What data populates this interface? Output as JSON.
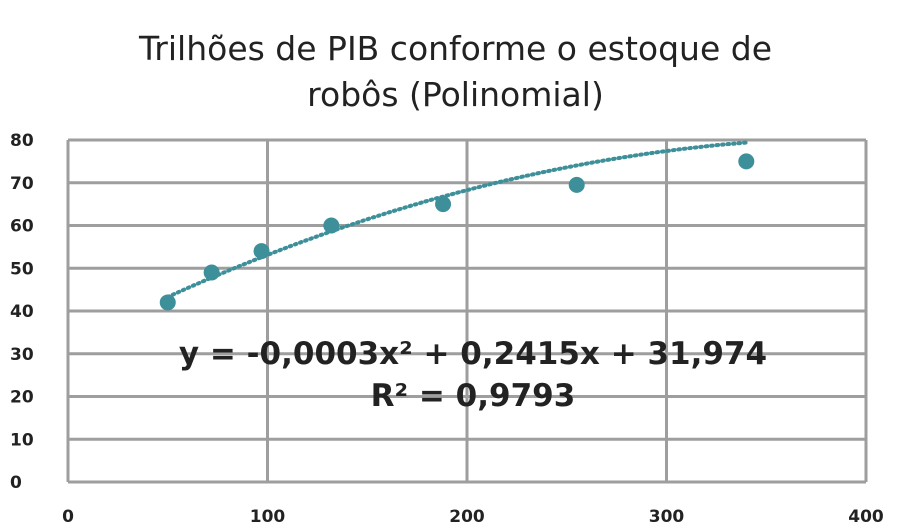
{
  "chart_data": {
    "type": "scatter",
    "title_line1": "Trilhões de PIB conforme o estoque de",
    "title_line2": "robôs (Polinomial)",
    "xlabel": "",
    "ylabel": "",
    "xlim": [
      0,
      400
    ],
    "ylim": [
      0,
      80
    ],
    "x_ticks": [
      "0",
      "100",
      "200",
      "300",
      "400"
    ],
    "y_ticks": [
      "0",
      "10",
      "20",
      "30",
      "40",
      "50",
      "60",
      "70",
      "80"
    ],
    "grid": true,
    "points": [
      {
        "x": 50,
        "y": 42
      },
      {
        "x": 72,
        "y": 49
      },
      {
        "x": 97,
        "y": 54
      },
      {
        "x": 132,
        "y": 60
      },
      {
        "x": 188,
        "y": 65
      },
      {
        "x": 255,
        "y": 69.5
      },
      {
        "x": 340,
        "y": 75
      }
    ],
    "trendline": {
      "type": "polynomial",
      "coefficients": [
        -0.0003,
        0.2415,
        31.974
      ],
      "x_range": [
        50,
        340
      ]
    },
    "equation_label": "y = -0,0003x² + 0,2415x + 31,974",
    "r2_label": "R² = 0,9793",
    "colors": {
      "marker": "#3d8f99",
      "trendline": "#3d8f99",
      "grid": "#9e9e9e"
    }
  }
}
